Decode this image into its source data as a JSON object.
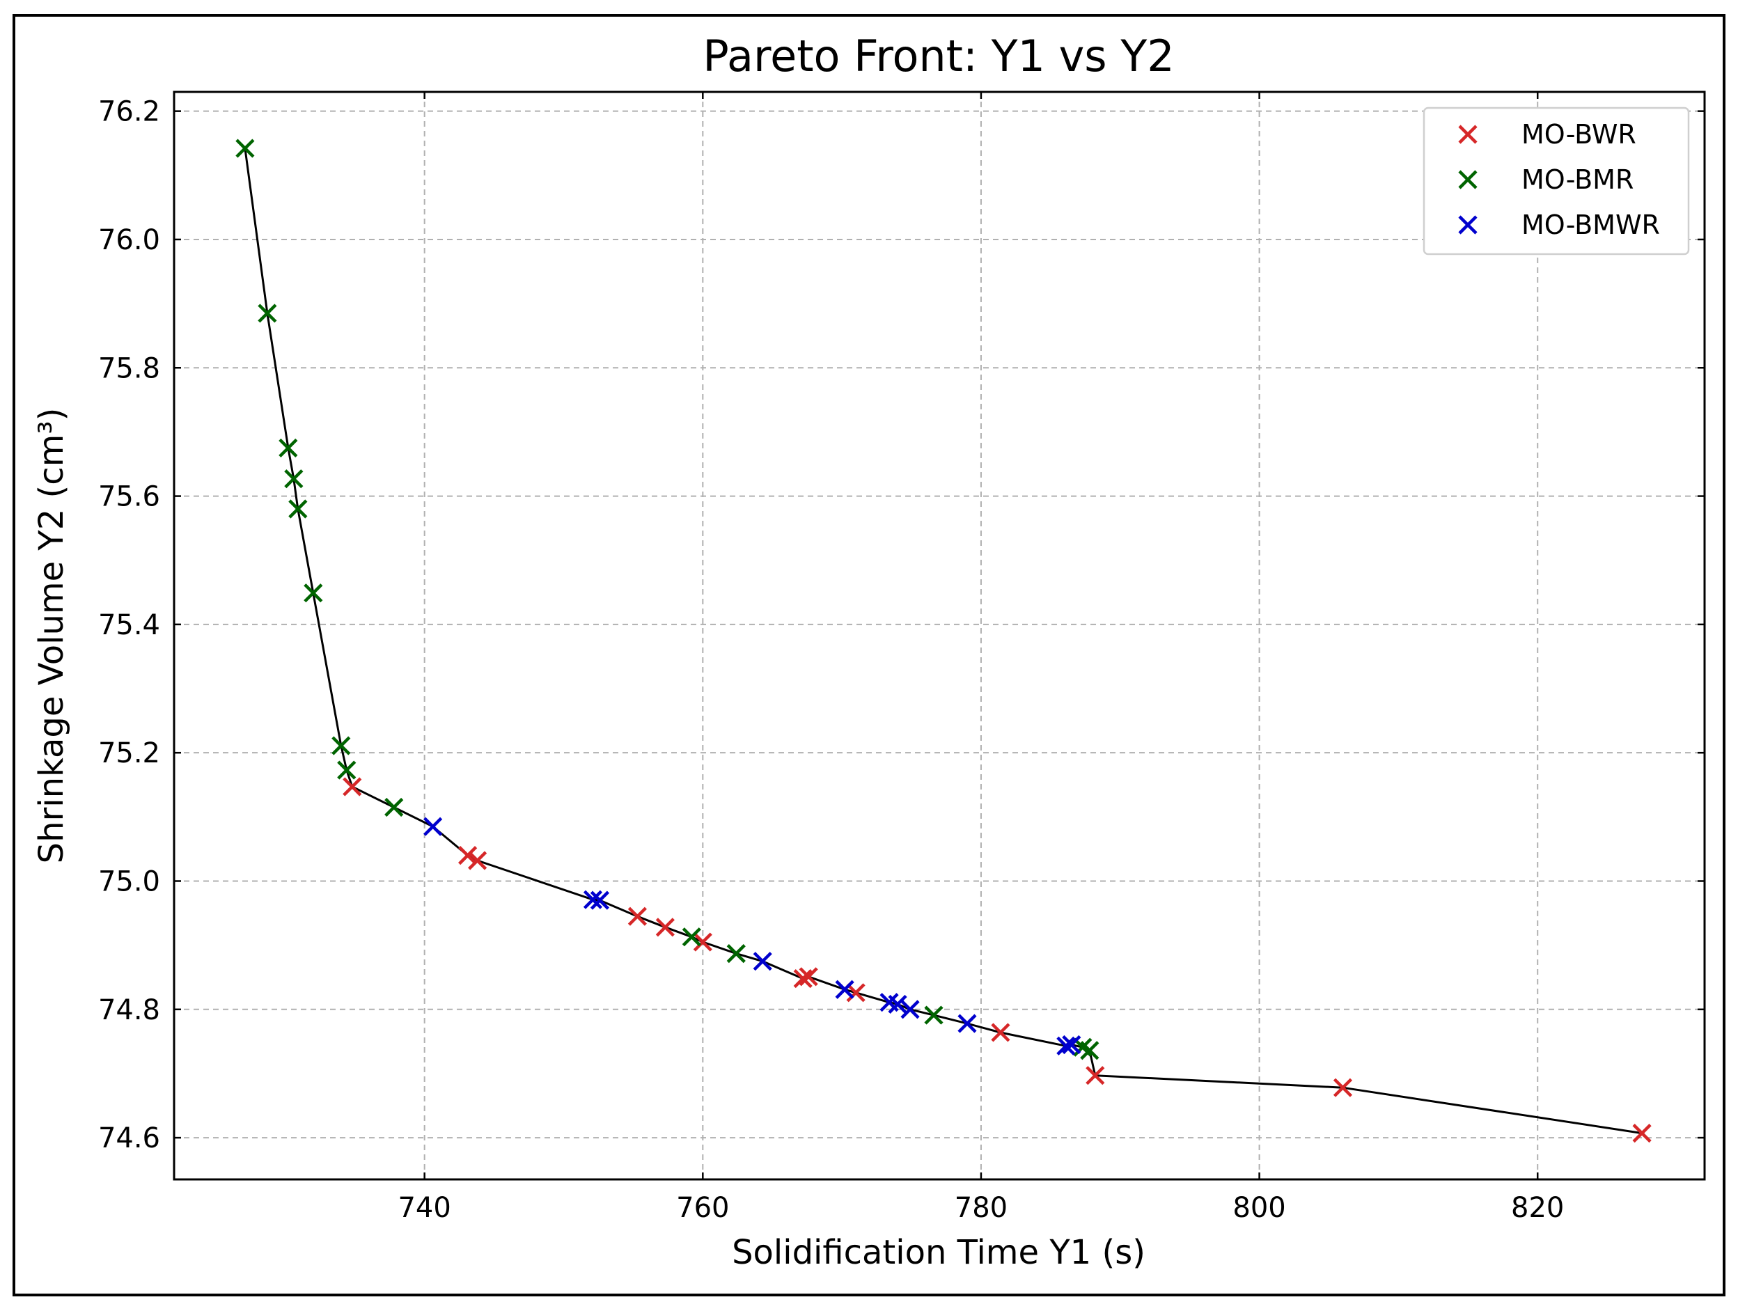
{
  "chart_data": {
    "type": "scatter",
    "title": "Pareto Front: Y1 vs Y2",
    "xlabel": "Solidification Time Y1 (s)",
    "ylabel": "Shrinkage Volume Y2 (cm³)",
    "xlim": [
      722,
      832
    ],
    "ylim": [
      74.535,
      76.23
    ],
    "xticks": [
      740,
      760,
      780,
      800,
      820
    ],
    "yticks": [
      74.6,
      74.8,
      75.0,
      75.2,
      75.4,
      75.6,
      75.8,
      76.0,
      76.2
    ],
    "xtick_labels": [
      "740",
      "760",
      "780",
      "800",
      "820"
    ],
    "ytick_labels": [
      "74.6",
      "74.8",
      "75.0",
      "75.2",
      "75.4",
      "75.6",
      "75.8",
      "76.0",
      "76.2"
    ],
    "grid": true,
    "legend_position": "top-right",
    "marker": "x",
    "series": [
      {
        "name": "MO-BWR",
        "color": "#d62728",
        "x": [
          734.8,
          743.1,
          743.8,
          755.3,
          757.3,
          760.0,
          767.2,
          767.6,
          771.0,
          781.4,
          788.2,
          806.0,
          827.5
        ],
        "y": [
          75.147,
          75.04,
          75.032,
          74.945,
          74.928,
          74.905,
          74.848,
          74.851,
          74.826,
          74.764,
          74.697,
          74.678,
          74.607
        ]
      },
      {
        "name": "MO-BMR",
        "color": "#006400",
        "x": [
          727.1,
          728.7,
          730.2,
          730.6,
          730.9,
          732.0,
          734.0,
          734.4,
          737.8,
          759.2,
          762.4,
          776.6,
          787.3,
          787.8
        ],
        "y": [
          76.142,
          75.885,
          75.675,
          75.627,
          75.58,
          75.449,
          75.211,
          75.173,
          75.115,
          74.913,
          74.887,
          74.791,
          74.741,
          74.736
        ]
      },
      {
        "name": "MO-BMWR",
        "color": "#0000cd",
        "x": [
          740.6,
          752.1,
          752.6,
          764.3,
          770.2,
          773.4,
          774.0,
          774.9,
          779.0,
          786.1,
          786.5
        ],
        "y": [
          75.085,
          74.971,
          74.97,
          74.875,
          74.831,
          74.811,
          74.808,
          74.8,
          74.778,
          74.743,
          74.745
        ]
      }
    ],
    "front_line": {
      "x": [
        727.1,
        728.7,
        730.2,
        730.6,
        730.9,
        732.0,
        734.0,
        734.4,
        734.8,
        737.8,
        740.6,
        743.1,
        743.8,
        752.1,
        752.6,
        755.3,
        757.3,
        759.2,
        760.0,
        762.4,
        764.3,
        767.2,
        767.6,
        770.2,
        771.0,
        773.4,
        774.0,
        774.9,
        776.6,
        779.0,
        781.4,
        786.1,
        786.5,
        787.3,
        787.8,
        788.2,
        806.0,
        827.5
      ],
      "y": [
        76.142,
        75.885,
        75.675,
        75.627,
        75.58,
        75.449,
        75.211,
        75.173,
        75.147,
        75.115,
        75.085,
        75.04,
        75.032,
        74.971,
        74.97,
        74.945,
        74.928,
        74.913,
        74.905,
        74.887,
        74.875,
        74.848,
        74.851,
        74.831,
        74.826,
        74.811,
        74.808,
        74.8,
        74.791,
        74.778,
        74.764,
        74.743,
        74.745,
        74.741,
        74.736,
        74.697,
        74.678,
        74.607
      ],
      "color": "#000000"
    }
  }
}
